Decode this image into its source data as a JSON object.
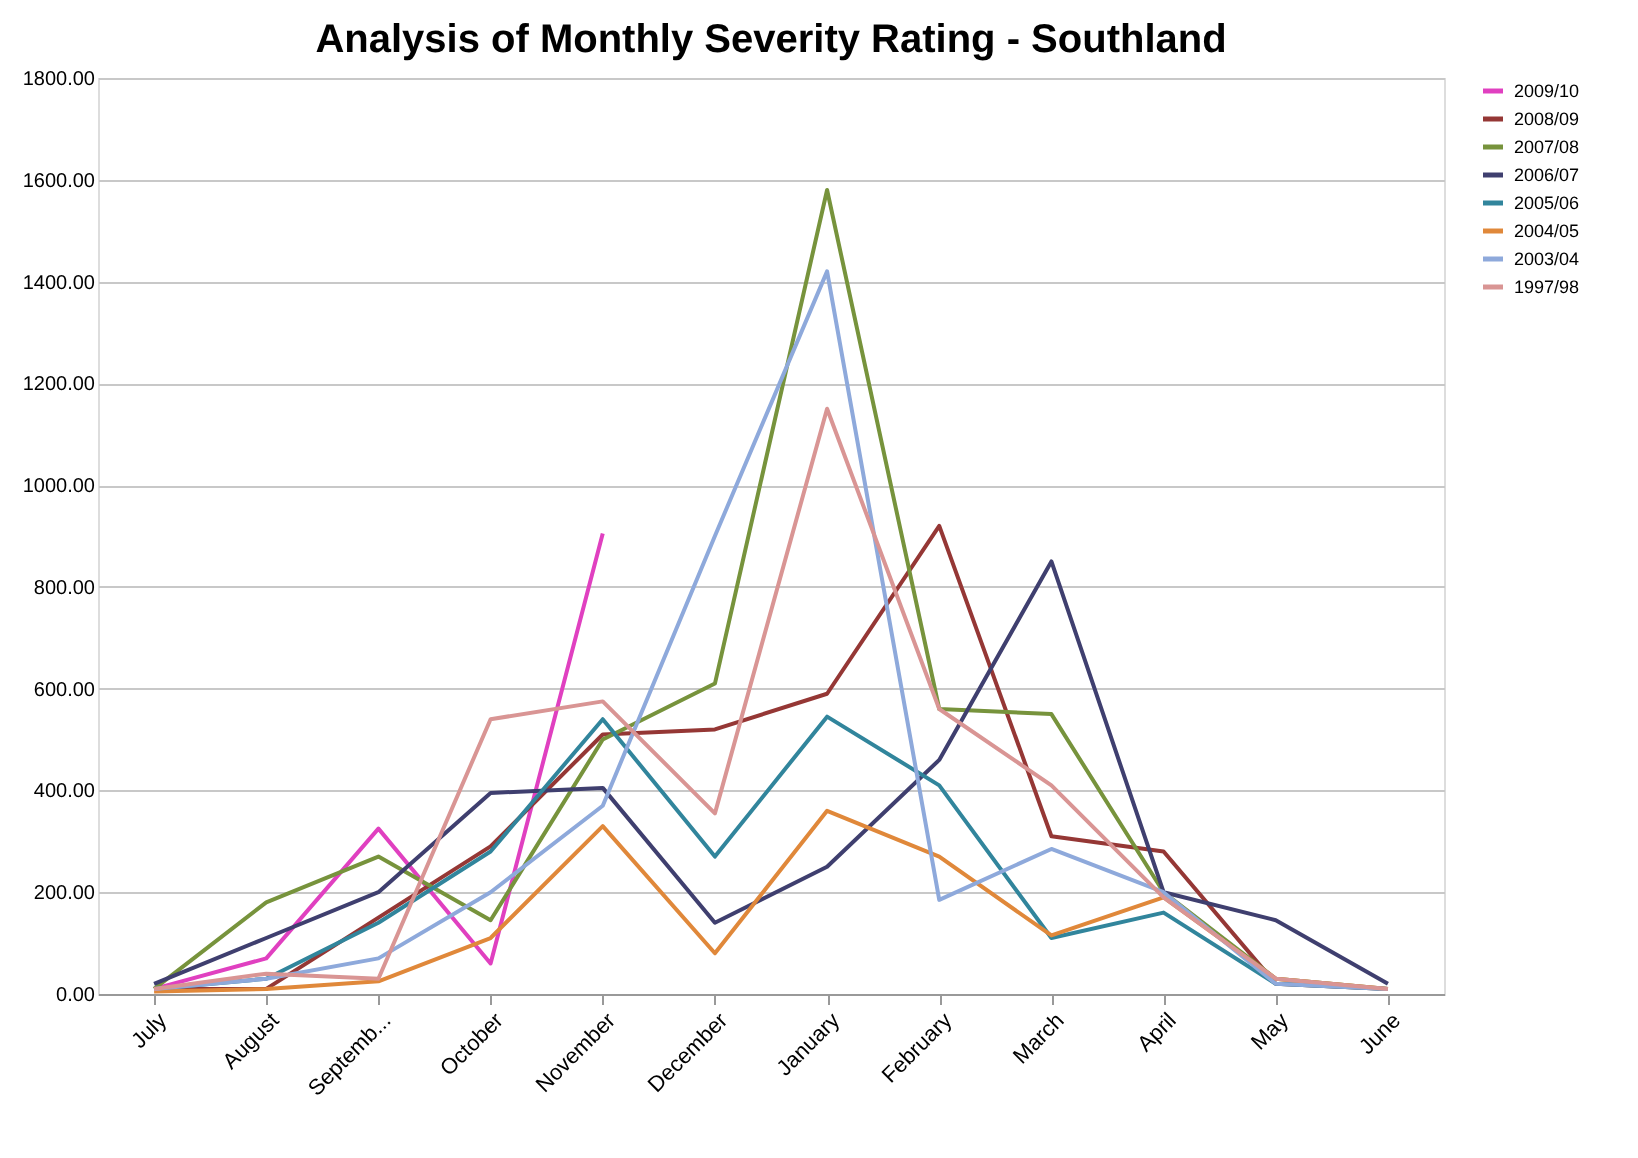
{
  "chart_data": {
    "type": "line",
    "title": "Analysis of Monthly Severity Rating - Southland",
    "categories": [
      "July",
      "August",
      "Septemb...",
      "October",
      "November",
      "December",
      "January",
      "February",
      "March",
      "April",
      "May",
      "June"
    ],
    "series": [
      {
        "name": "2009/10",
        "color": "#e040c0",
        "values": [
          10,
          70,
          325,
          60,
          905,
          null,
          null,
          null,
          null,
          null,
          null,
          null
        ]
      },
      {
        "name": "2008/09",
        "color": "#953735",
        "values": [
          10,
          10,
          150,
          290,
          510,
          520,
          590,
          920,
          310,
          280,
          20,
          10
        ]
      },
      {
        "name": "2007/08",
        "color": "#77933c",
        "values": [
          10,
          180,
          270,
          145,
          500,
          610,
          1580,
          560,
          550,
          200,
          30,
          10
        ]
      },
      {
        "name": "2006/07",
        "color": "#3f3f6f",
        "values": [
          20,
          110,
          200,
          395,
          405,
          140,
          250,
          460,
          850,
          200,
          145,
          20
        ]
      },
      {
        "name": "2005/06",
        "color": "#31859c",
        "values": [
          10,
          30,
          140,
          280,
          540,
          270,
          545,
          410,
          110,
          160,
          20,
          10
        ]
      },
      {
        "name": "2004/05",
        "color": "#e0883a",
        "values": [
          5,
          10,
          25,
          110,
          330,
          80,
          360,
          270,
          115,
          190,
          30,
          10
        ]
      },
      {
        "name": "2003/04",
        "color": "#8ea9db",
        "values": [
          10,
          30,
          70,
          200,
          370,
          900,
          1420,
          185,
          285,
          200,
          20,
          10
        ]
      },
      {
        "name": "1997/98",
        "color": "#d99594",
        "values": [
          10,
          40,
          30,
          540,
          575,
          355,
          1150,
          560,
          410,
          190,
          30,
          10
        ]
      }
    ],
    "ylim": [
      0,
      1800
    ],
    "yticks": [
      {
        "value": 0,
        "label": "0.00"
      },
      {
        "value": 200,
        "label": "200.00"
      },
      {
        "value": 400,
        "label": "400.00"
      },
      {
        "value": 600,
        "label": "600.00"
      },
      {
        "value": 800,
        "label": "800.00"
      },
      {
        "value": 1000,
        "label": "1000.00"
      },
      {
        "value": 1200,
        "label": "1200.00"
      },
      {
        "value": 1400,
        "label": "1400.00"
      },
      {
        "value": 1600,
        "label": "1600.00"
      },
      {
        "value": 1800,
        "label": "1800.00"
      }
    ],
    "grid": "y",
    "legend": "right",
    "marker": "none",
    "line_style": "solid"
  }
}
